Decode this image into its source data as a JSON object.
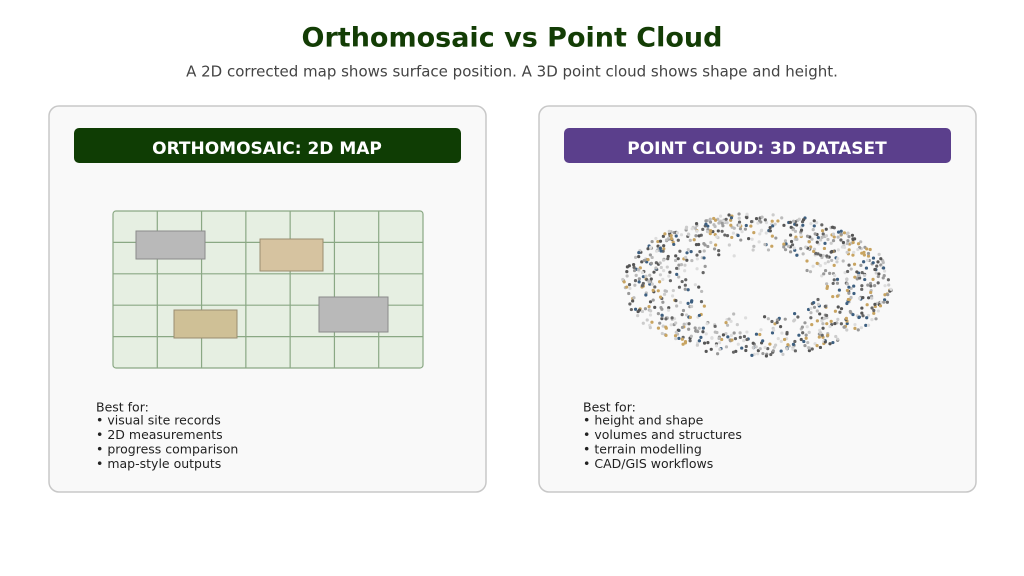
{
  "header": {
    "title": "Orthomosaic vs Point Cloud",
    "subtitle": "A 2D corrected map shows surface position. A 3D point cloud shows shape and height."
  },
  "panels": [
    {
      "heading": "ORTHOMOSAIC: 2D MAP",
      "lead": "Best for:",
      "items": [
        "• visual site records",
        "• 2D measurements",
        "• progress comparison",
        "• map-style outputs"
      ]
    },
    {
      "heading": "POINT CLOUD: 3D DATASET",
      "lead": "Best for:",
      "items": [
        "• height and shape",
        "• volumes and structures",
        "• terrain modelling",
        "• CAD/GIS workflows"
      ]
    }
  ]
}
